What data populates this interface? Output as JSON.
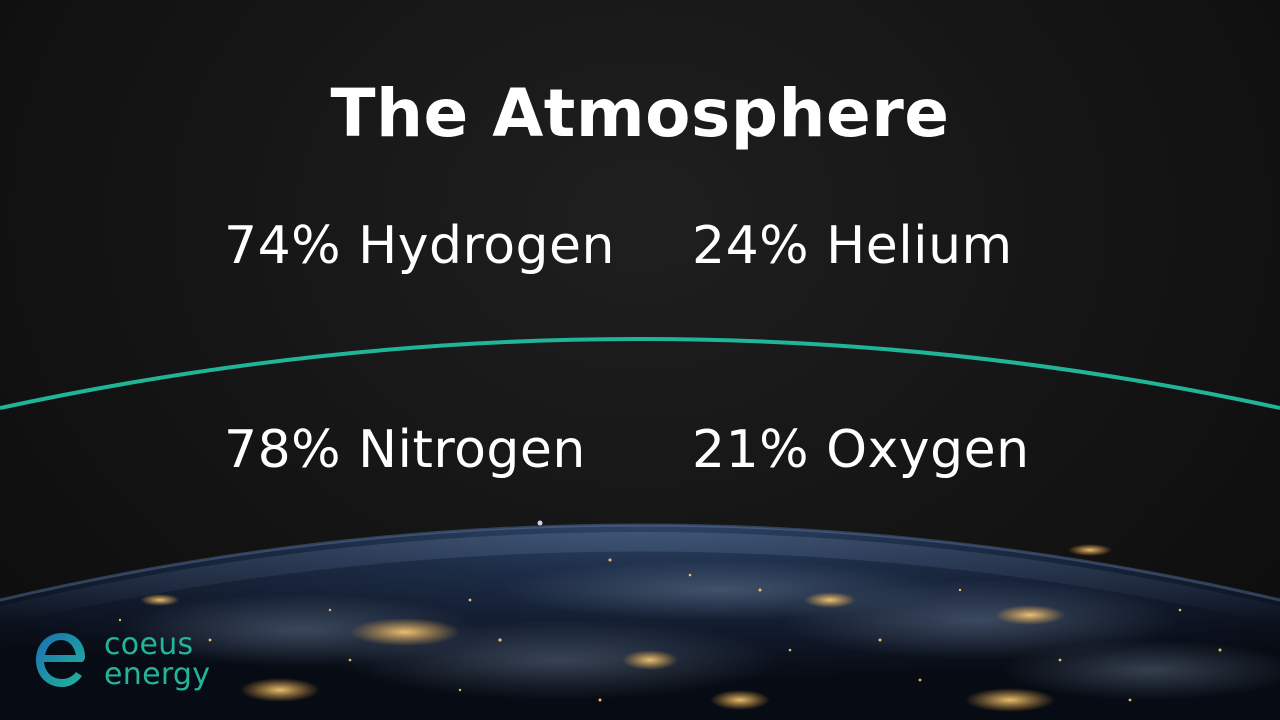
{
  "slide": {
    "title": "The Atmosphere",
    "upper_layer": {
      "items": [
        "74% Hydrogen",
        "24% Helium"
      ]
    },
    "lower_layer": {
      "items": [
        "78% Nitrogen",
        "21% Oxygen"
      ]
    },
    "divider_color": "#1fb596"
  },
  "logo": {
    "line1": "coeus",
    "line2": "energy",
    "icon": "e-letter-logo-icon",
    "colors": {
      "blue": "#1a6fb3",
      "green": "#22b59a"
    }
  },
  "background": {
    "image": "earth-at-night-from-space"
  }
}
